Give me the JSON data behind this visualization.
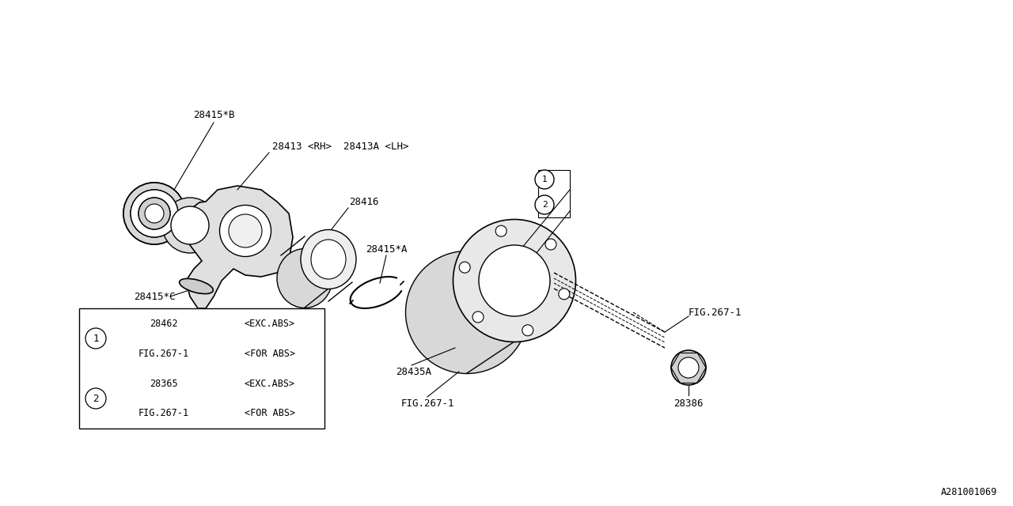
{
  "bg_color": "#ffffff",
  "line_color": "#000000",
  "fig_width": 12.8,
  "fig_height": 6.4,
  "watermark": "A281001069",
  "legend_rows": [
    [
      "1",
      "28462",
      "<EXC.ABS>"
    ],
    [
      "1",
      "FIG.267-1",
      "<FOR ABS>"
    ],
    [
      "2",
      "28365",
      "<EXC.ABS>"
    ],
    [
      "2",
      "FIG.267-1",
      "<FOR ABS>"
    ]
  ]
}
